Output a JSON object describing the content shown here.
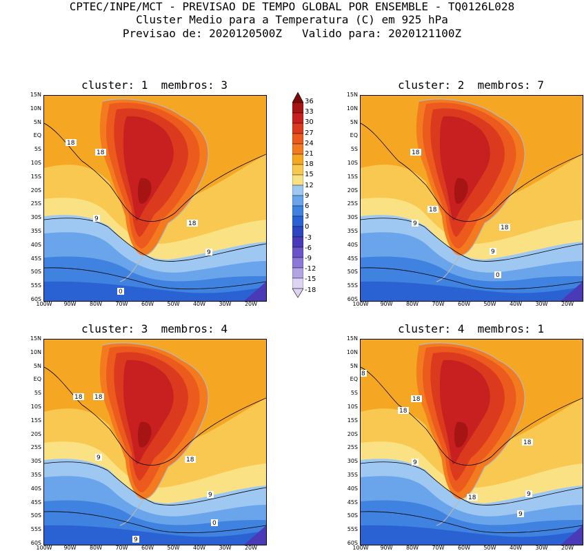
{
  "title": {
    "line1": "CPTEC/INPE/MCT - PREVISAO DE TEMPO GLOBAL POR ENSEMBLE - TQ0126L028",
    "line2": "Cluster Medio para a Temperatura (C) em 925 hPa",
    "line3": "Previsao de: 2020120500Z   Valido para: 2020121100Z"
  },
  "panels": [
    {
      "title": "cluster: 1  membros: 3",
      "labels": [
        "18",
        "18",
        "9",
        "18",
        "9",
        "0"
      ]
    },
    {
      "title": "cluster: 2  membros: 7",
      "labels": [
        "18",
        "18",
        "9",
        "18",
        "9",
        "0"
      ]
    },
    {
      "title": "cluster: 3  membros: 4",
      "labels": [
        "18",
        "18",
        "9",
        "18",
        "9",
        "0",
        "9"
      ]
    },
    {
      "title": "cluster: 4  membros: 1",
      "labels": [
        "8",
        "18",
        "18",
        "18",
        "9",
        "18",
        "9",
        "9"
      ]
    }
  ],
  "lat_ticks": [
    "15N",
    "10N",
    "5N",
    "EQ",
    "5S",
    "10S",
    "15S",
    "20S",
    "25S",
    "30S",
    "35S",
    "40S",
    "45S",
    "50S",
    "55S",
    "60S"
  ],
  "lon_ticks": [
    "100W",
    "90W",
    "80W",
    "70W",
    "60W",
    "50W",
    "40W",
    "30W",
    "20W"
  ],
  "colorbar": {
    "labels": [
      "36",
      "33",
      "30",
      "27",
      "24",
      "21",
      "18",
      "15",
      "12",
      "9",
      "6",
      "3",
      "0",
      "-3",
      "-6",
      "-9",
      "-12",
      "-15",
      "-18"
    ],
    "colors": [
      "#7a0a0a",
      "#a61414",
      "#c82020",
      "#dc3a1e",
      "#ec5a1e",
      "#f47a20",
      "#f5a623",
      "#f8c850",
      "#fae184",
      "#9ec8f2",
      "#6aa5eb",
      "#3f82e0",
      "#2a62d4",
      "#2e45c0",
      "#4a3ab8",
      "#6a55c8",
      "#8c78d6",
      "#b2a4e4",
      "#dcd4f2"
    ]
  }
}
